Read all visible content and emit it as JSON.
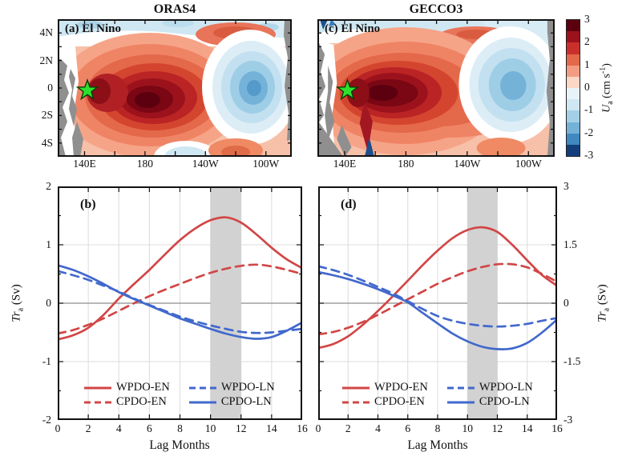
{
  "titles": {
    "left": "ORAS4",
    "right": "GECCO3"
  },
  "panels": {
    "a": {
      "label": "(a) El Nino"
    },
    "b": {
      "label": "(b)"
    },
    "c": {
      "label": "(c) El Nino"
    },
    "d": {
      "label": "(d)"
    }
  },
  "map_axes": {
    "x_tick_labels": [
      "140E",
      "180",
      "140W",
      "100W"
    ],
    "y_tick_labels": [
      "4N",
      "2N",
      "0",
      "2S",
      "4S"
    ]
  },
  "colorbar": {
    "tick_labels": [
      "3",
      "2",
      "1",
      "0",
      "-1",
      "-2",
      "-3"
    ],
    "label": {
      "var": "U",
      "sub": "a",
      "pre": " (cm s",
      "sup": "-1",
      "post": ")"
    },
    "colors": [
      "#5c0010",
      "#9c121c",
      "#c9302c",
      "#e4684a",
      "#f29d83",
      "#fdd7c5",
      "#e8f3f9",
      "#cfe7f2",
      "#a4d0e7",
      "#74b2d8",
      "#3f88c0",
      "#123f7c"
    ]
  },
  "line_axes": {
    "x_tick_labels": [
      "0",
      "2",
      "4",
      "6",
      "8",
      "10",
      "12",
      "14",
      "16"
    ],
    "b": {
      "y_tick_labels": [
        "2",
        "1",
        "0",
        "-1",
        "-2"
      ],
      "ylabel": {
        "var": "Tr",
        "sub": "a",
        "pre": " (Sv)",
        "sup": "",
        "post": ""
      },
      "xlabel": "Lag Months"
    },
    "d": {
      "y_tick_labels": [
        "3",
        "1.5",
        "0",
        "-1.5",
        "-3"
      ],
      "ylabel": {
        "var": "Tr",
        "sub": "a",
        "pre": " (Sv)",
        "sup": "",
        "post": ""
      },
      "xlabel": "Lag Months"
    }
  },
  "colors": {
    "red_line": "#d24646",
    "blue_line": "#4168cc",
    "shade_band": "#d2d2d2",
    "grid": "#dcdcdc",
    "zero_line": "#8c8c8c",
    "land": "#8f8f8f",
    "star": "#2ee12e"
  },
  "chart_data": [
    {
      "id": "a",
      "type": "heatmap",
      "title": "ORAS4",
      "panel_label": "(a) El Nino",
      "variable": "Ua anomaly (cm/s), composite for El Nino",
      "x_ticks": [
        "140E",
        "180",
        "140W",
        "100W"
      ],
      "y_ticks": [
        "4N",
        "2N",
        "0",
        "2S",
        "4S"
      ],
      "value_range": [
        -3,
        3
      ],
      "features": [
        {
          "name": "positive-maximum",
          "value": 3,
          "location": "160E-170W, 0-2S"
        },
        {
          "name": "negative-minimum",
          "value": -1.5,
          "location": "near 110W, equator"
        },
        {
          "name": "genesis-star-marker",
          "location": "about 142E, 0"
        },
        {
          "name": "land-mask",
          "location": "western boundary and eastern boundary"
        }
      ]
    },
    {
      "id": "c",
      "type": "heatmap",
      "title": "GECCO3",
      "panel_label": "(c) El Nino",
      "variable": "Ua anomaly (cm/s), composite for El Nino",
      "x_ticks": [
        "140E",
        "180",
        "140W",
        "100W"
      ],
      "y_ticks": [
        "4N",
        "2N",
        "0",
        "2S",
        "4S"
      ],
      "value_range": [
        -3,
        3
      ],
      "features": [
        {
          "name": "positive-maximum",
          "value": 3,
          "location": "145E-175E, 0-1S"
        },
        {
          "name": "negative-minimum",
          "value": -1.5,
          "location": "near 110W, equator"
        },
        {
          "name": "genesis-star-marker",
          "location": "about 142E, 0"
        },
        {
          "name": "land-mask",
          "location": "western boundary and eastern boundary"
        }
      ]
    },
    {
      "id": "b",
      "type": "line",
      "panel_label": "(b)",
      "xlabel": "Lag Months",
      "ylabel": "Tra (Sv)",
      "x": [
        0,
        1,
        2,
        3,
        4,
        5,
        6,
        7,
        8,
        9,
        10,
        11,
        12,
        13,
        14,
        15,
        16
      ],
      "xlim": [
        0,
        16
      ],
      "ylim": [
        -2,
        2
      ],
      "grid_y": [
        1,
        -1
      ],
      "shaded_band_x": [
        10,
        12
      ],
      "y_ticks_major": [
        2,
        1,
        0,
        -1,
        -2
      ],
      "y_ticks_minor": [
        1.5,
        0.5,
        -0.5,
        -1.5
      ],
      "series": [
        {
          "name": "WPDO-EN",
          "color": "#d24646",
          "style": "solid",
          "values": [
            -0.62,
            -0.55,
            -0.42,
            -0.2,
            0.08,
            0.33,
            0.57,
            0.83,
            1.08,
            1.28,
            1.42,
            1.47,
            1.38,
            1.18,
            0.95,
            0.75,
            0.6
          ]
        },
        {
          "name": "CPDO-EN",
          "color": "#d24646",
          "style": "dashed",
          "values": [
            -0.52,
            -0.46,
            -0.37,
            -0.26,
            -0.13,
            0.0,
            0.12,
            0.23,
            0.33,
            0.43,
            0.52,
            0.59,
            0.64,
            0.66,
            0.63,
            0.57,
            0.5
          ]
        },
        {
          "name": "WPDO-LN",
          "color": "#4168cc",
          "style": "dashed",
          "values": [
            0.55,
            0.48,
            0.4,
            0.3,
            0.2,
            0.08,
            -0.03,
            -0.13,
            -0.23,
            -0.31,
            -0.38,
            -0.44,
            -0.49,
            -0.51,
            -0.5,
            -0.47,
            -0.44
          ]
        },
        {
          "name": "CPDO-LN",
          "color": "#4168cc",
          "style": "solid",
          "values": [
            0.65,
            0.57,
            0.46,
            0.33,
            0.19,
            0.07,
            -0.04,
            -0.15,
            -0.26,
            -0.35,
            -0.44,
            -0.52,
            -0.58,
            -0.61,
            -0.58,
            -0.47,
            -0.33
          ]
        }
      ]
    },
    {
      "id": "d",
      "type": "line",
      "panel_label": "(d)",
      "xlabel": "Lag Months",
      "ylabel": "Tra (Sv)",
      "x": [
        0,
        1,
        2,
        3,
        4,
        5,
        6,
        7,
        8,
        9,
        10,
        11,
        12,
        13,
        14,
        15,
        16
      ],
      "xlim": [
        0,
        16
      ],
      "ylim": [
        -3,
        3
      ],
      "grid_y": [
        1.5,
        -1.5
      ],
      "shaded_band_x": [
        10,
        12
      ],
      "y_ticks_major": [
        3,
        1.5,
        0,
        -1.5,
        -3
      ],
      "y_ticks_minor": [
        2.25,
        0.75,
        -0.75,
        -2.25
      ],
      "series": [
        {
          "name": "WPDO-EN",
          "color": "#d24646",
          "style": "solid",
          "values": [
            -1.15,
            -1.05,
            -0.85,
            -0.55,
            -0.2,
            0.18,
            0.58,
            0.98,
            1.35,
            1.67,
            1.88,
            1.95,
            1.83,
            1.5,
            1.1,
            0.72,
            0.45
          ]
        },
        {
          "name": "CPDO-EN",
          "color": "#d24646",
          "style": "dashed",
          "values": [
            -0.8,
            -0.74,
            -0.63,
            -0.48,
            -0.3,
            -0.1,
            0.1,
            0.3,
            0.5,
            0.67,
            0.82,
            0.93,
            1.0,
            1.0,
            0.92,
            0.75,
            0.55
          ]
        },
        {
          "name": "WPDO-LN",
          "color": "#4168cc",
          "style": "dashed",
          "values": [
            0.95,
            0.85,
            0.73,
            0.58,
            0.42,
            0.25,
            0.05,
            -0.15,
            -0.33,
            -0.45,
            -0.53,
            -0.58,
            -0.6,
            -0.58,
            -0.53,
            -0.45,
            -0.38
          ]
        },
        {
          "name": "CPDO-LN",
          "color": "#4168cc",
          "style": "solid",
          "values": [
            0.8,
            0.72,
            0.62,
            0.5,
            0.36,
            0.2,
            0.02,
            -0.25,
            -0.52,
            -0.78,
            -0.98,
            -1.12,
            -1.18,
            -1.16,
            -1.02,
            -0.75,
            -0.42
          ]
        }
      ]
    }
  ]
}
